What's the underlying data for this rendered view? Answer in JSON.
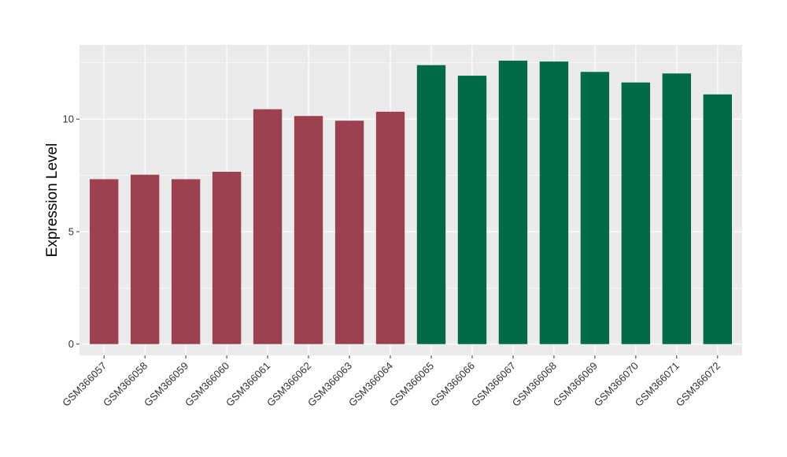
{
  "chart_data": {
    "type": "bar",
    "ylabel": "Expression Level",
    "xlabel": "",
    "categories": [
      "GSM366057",
      "GSM366058",
      "GSM366059",
      "GSM366060",
      "GSM366061",
      "GSM366062",
      "GSM366063",
      "GSM366064",
      "GSM366065",
      "GSM366066",
      "GSM366067",
      "GSM366068",
      "GSM366069",
      "GSM366070",
      "GSM366071",
      "GSM366072"
    ],
    "values": [
      7.33,
      7.53,
      7.33,
      7.66,
      10.44,
      10.14,
      9.93,
      10.33,
      12.4,
      11.93,
      12.6,
      12.56,
      12.1,
      11.63,
      12.03,
      11.1
    ],
    "groups": [
      0,
      0,
      0,
      0,
      0,
      0,
      0,
      0,
      1,
      1,
      1,
      1,
      1,
      1,
      1,
      1
    ],
    "group_colors": [
      "#9b4150",
      "#006946"
    ],
    "ylim": [
      -0.5,
      13.3
    ],
    "yticks": [
      0,
      5,
      10
    ],
    "yticklabels": [
      "0",
      "5",
      "10"
    ],
    "grid": true,
    "panel_background": "#ebebeb",
    "grid_color": "#ffffff"
  }
}
